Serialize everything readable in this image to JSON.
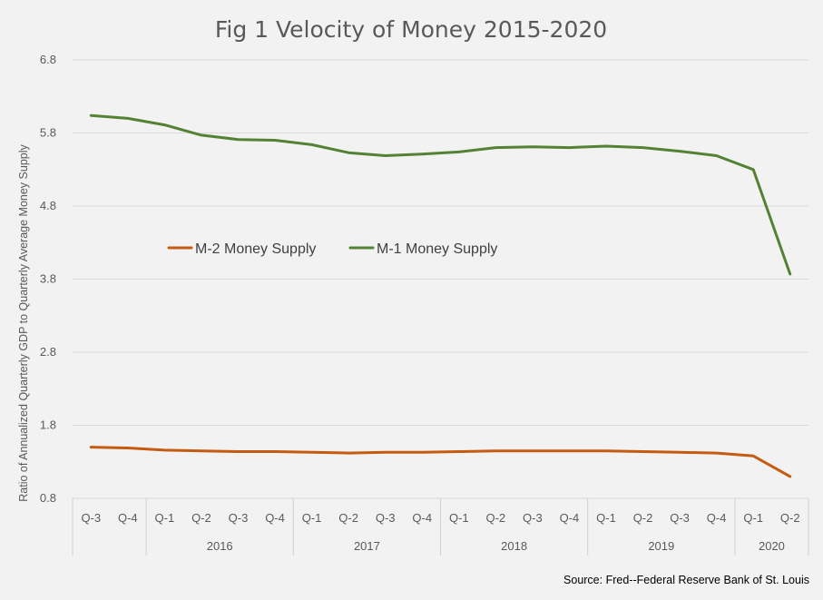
{
  "chart_data": {
    "type": "line",
    "title": "Fig 1 Velocity of Money 2015-2020",
    "ylabel": "Ratio of Annualized Quarterly GDP to Quarterly Average Money Supply",
    "xlabel": "",
    "ylim": [
      0.8,
      6.8
    ],
    "yticks": [
      "0.8",
      "1.8",
      "2.8",
      "3.8",
      "4.8",
      "5.8",
      "6.8"
    ],
    "grid": true,
    "legend_position": "center-left",
    "quarters": [
      "Q-3",
      "Q-4",
      "Q-1",
      "Q-2",
      "Q-3",
      "Q-4",
      "Q-1",
      "Q-2",
      "Q-3",
      "Q-4",
      "Q-1",
      "Q-2",
      "Q-3",
      "Q-4",
      "Q-1",
      "Q-2",
      "Q-3",
      "Q-4",
      "Q-1",
      "Q-2"
    ],
    "year_groups": [
      {
        "label": "",
        "span": 2
      },
      {
        "label": "2016",
        "span": 4
      },
      {
        "label": "2017",
        "span": 4
      },
      {
        "label": "2018",
        "span": 4
      },
      {
        "label": "2019",
        "span": 4
      },
      {
        "label": "2020",
        "span": 2
      }
    ],
    "series": [
      {
        "name": "M-2 Money Supply",
        "color": "#c55a11",
        "values": [
          1.5,
          1.49,
          1.46,
          1.45,
          1.44,
          1.44,
          1.43,
          1.42,
          1.43,
          1.43,
          1.44,
          1.45,
          1.45,
          1.45,
          1.45,
          1.44,
          1.43,
          1.42,
          1.38,
          1.1
        ]
      },
      {
        "name": "M-1 Money Supply",
        "color": "#548235",
        "values": [
          6.04,
          6.0,
          5.91,
          5.77,
          5.71,
          5.7,
          5.64,
          5.53,
          5.49,
          5.51,
          5.54,
          5.6,
          5.61,
          5.6,
          5.62,
          5.6,
          5.55,
          5.49,
          5.3,
          3.87
        ]
      }
    ]
  },
  "source_note": "Source: Fred--Federal Reserve Bank of St. Louis"
}
